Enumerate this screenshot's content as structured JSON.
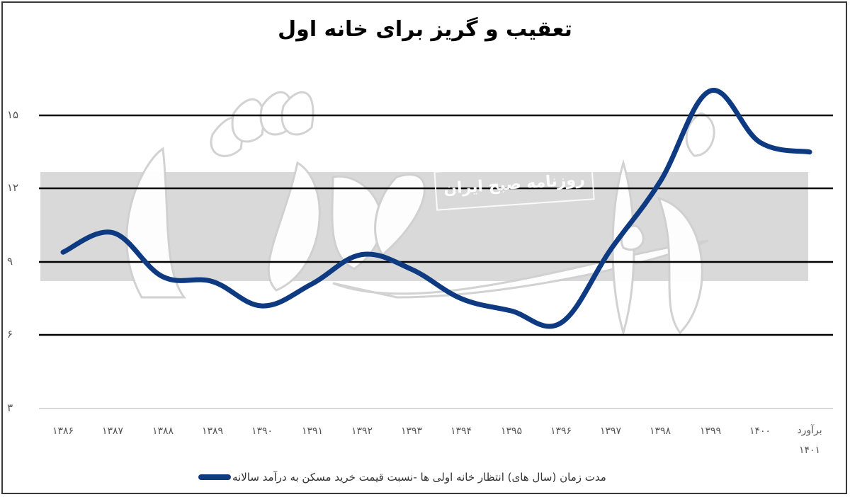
{
  "chart_data": {
    "type": "line",
    "title": "تعقیب و گریز برای خانه اول",
    "xlabel": "",
    "ylabel": "",
    "ylim": [
      3,
      16.5
    ],
    "yticks": [
      "۳",
      "۶",
      "۹",
      "۱۲",
      "۱۵"
    ],
    "ytick_values": [
      3,
      6,
      9,
      12,
      15
    ],
    "grid": true,
    "legend_position": "bottom",
    "categories": [
      "۱۳۸۶",
      "۱۳۸۷",
      "۱۳۸۸",
      "۱۳۸۹",
      "۱۳۹۰",
      "۱۳۹۱",
      "۱۳۹۲",
      "۱۳۹۳",
      "۱۳۹۴",
      "۱۳۹۵",
      "۱۳۹۶",
      "۱۳۹۷",
      "۱۳۹۸",
      "۱۳۹۹",
      "۱۴۰۰",
      "برآورد ۱۴۰۱"
    ],
    "series": [
      {
        "name": "مدت زمان (سال های) انتظار خانه اولی ها -نسبت قیمت خرید مسکن به درآمد سالانه",
        "color": "#0e3a82",
        "values": [
          9.4,
          10.2,
          8.4,
          8.2,
          7.2,
          8.1,
          9.3,
          8.7,
          7.5,
          7.0,
          6.5,
          9.5,
          12.3,
          16.0,
          13.9,
          13.5
        ]
      }
    ]
  },
  "header": {
    "title": "تعقیب و گریز برای خانه اول"
  },
  "axis": {
    "y_labels": [
      "۱۵",
      "۱۲",
      "۹",
      "۶",
      "۳"
    ],
    "x_labels": [
      "۱۳۸۶",
      "۱۳۸۷",
      "۱۳۸۸",
      "۱۳۸۹",
      "۱۳۹۰",
      "۱۳۹۱",
      "۱۳۹۲",
      "۱۳۹۳",
      "۱۳۹۴",
      "۱۳۹۵",
      "۱۳۹۶",
      "۱۳۹۷",
      "۱۳۹۸",
      "۱۳۹۹",
      "۱۴۰۰"
    ],
    "x_last_line1": "برآورد",
    "x_last_line2": "۱۴۰۱"
  },
  "legend": {
    "label": "مدت زمان (سال های) انتظار خانه اولی ها -نسبت قیمت خرید مسکن به درآمد سالانه",
    "color": "#0e3a82"
  },
  "watermark": {
    "logo_text": "دنیای اقتصاد",
    "stamp_text": "روزنامه صبح ایران"
  }
}
